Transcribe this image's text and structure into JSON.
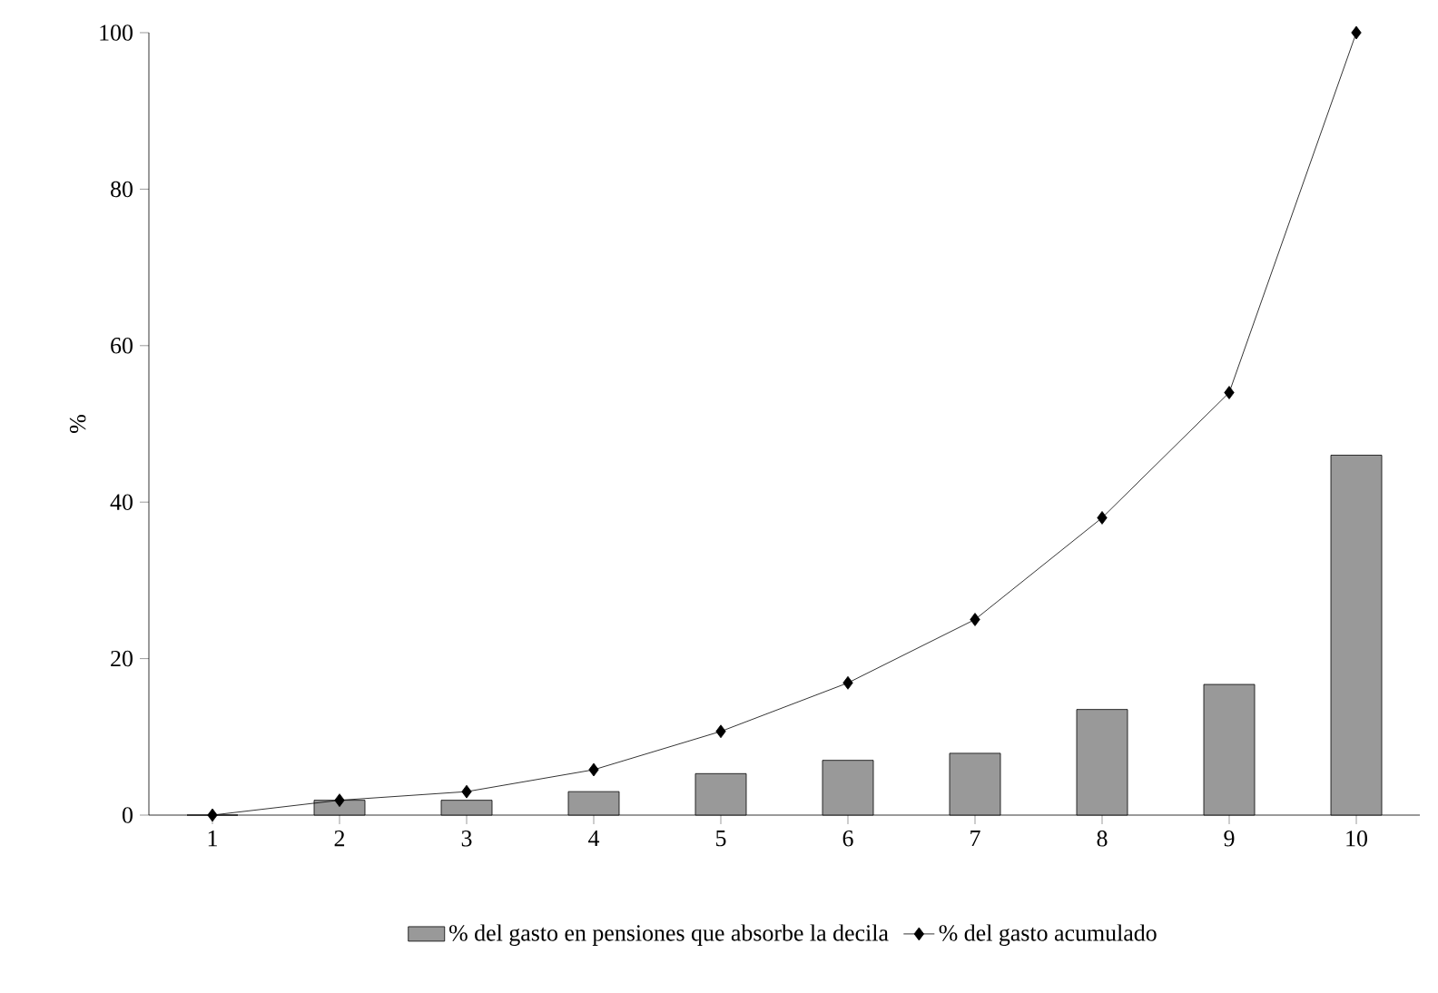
{
  "chart_data": {
    "type": "bar",
    "ylabel": "%",
    "categories": [
      "1",
      "2",
      "3",
      "4",
      "5",
      "6",
      "7",
      "8",
      "9",
      "10"
    ],
    "series": [
      {
        "name": "% del gasto en pensiones que absorbe la decila",
        "color": "#999999",
        "values": [
          0,
          1.9,
          1.9,
          3.0,
          5.3,
          7.0,
          7.9,
          13.5,
          16.7,
          46
        ]
      },
      {
        "name": "% del gasto acumulado",
        "type": "line",
        "color": "#000000",
        "marker": "diamond",
        "values": [
          0,
          1.9,
          3.0,
          5.8,
          10.7,
          16.9,
          25,
          38,
          54,
          100
        ]
      }
    ],
    "ylim": [
      0,
      100
    ],
    "yticks": [
      0,
      20,
      40,
      60,
      80,
      100
    ],
    "grid": false,
    "legend": "bottom"
  }
}
